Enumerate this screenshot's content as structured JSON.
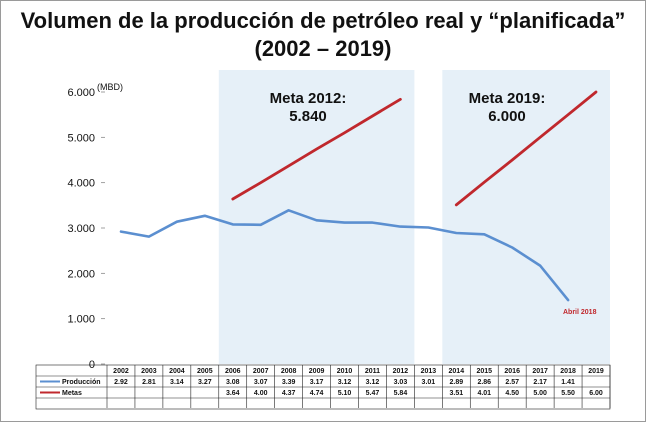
{
  "title": {
    "line1": "Volumen de la producción de petróleo real y “planificada”",
    "line2": "(2002 – 2019)"
  },
  "chart_data": {
    "type": "line",
    "title": "Volumen de la producción de petróleo real y “planificada” (2002 – 2019)",
    "ylabel": "(MBD)",
    "xlabel": "",
    "ylim": [
      0,
      6000
    ],
    "yticks": [
      0,
      1000,
      2000,
      3000,
      4000,
      5000,
      6000
    ],
    "ytick_labels": [
      "0",
      "1.000",
      "2.000",
      "3.000",
      "4.000",
      "5.000",
      "6.000"
    ],
    "categories": [
      "2002",
      "2003",
      "2004",
      "2005",
      "2006",
      "2007",
      "2008",
      "2009",
      "2010",
      "2011",
      "2012",
      "2013",
      "2014",
      "2015",
      "2016",
      "2017",
      "2018",
      "2019"
    ],
    "series": [
      {
        "name": "Producción",
        "color": "#5b8fd0",
        "values": [
          2920,
          2810,
          3140,
          3270,
          3080,
          3070,
          3390,
          3170,
          3120,
          3120,
          3030,
          3010,
          2890,
          2860,
          2570,
          2170,
          1410,
          null
        ],
        "table_labels": [
          "2.92",
          "2.81",
          "3.14",
          "3.27",
          "3.08",
          "3.07",
          "3.39",
          "3.17",
          "3.12",
          "3.12",
          "3.03",
          "3.01",
          "2.89",
          "2.86",
          "2.57",
          "2.17",
          "1.41",
          ""
        ]
      },
      {
        "name": "Metas",
        "color": "#c0282d",
        "values": [
          null,
          null,
          null,
          null,
          3640,
          4000,
          4370,
          4740,
          5100,
          5470,
          5840,
          null,
          3510,
          4010,
          4500,
          5000,
          5500,
          6000
        ],
        "table_labels": [
          "",
          "",
          "",
          "",
          "3.64",
          "4.00",
          "4.37",
          "4.74",
          "5.10",
          "5.47",
          "5.84",
          "",
          "3.51",
          "4.01",
          "4.50",
          "5.00",
          "5.50",
          "6.00"
        ]
      }
    ],
    "highlight_ranges": [
      {
        "from": "2006",
        "to": "2012",
        "color": "#e6f0f8"
      },
      {
        "from": "2014",
        "to": "2019",
        "color": "#e6f0f8"
      }
    ],
    "annotations": [
      {
        "line1": "Meta 2012:",
        "line2": "5.840"
      },
      {
        "line1": "Meta 2019:",
        "line2": "6.000"
      },
      {
        "text": "Abril 2018",
        "color": "#c0282d"
      }
    ],
    "grid": false
  }
}
